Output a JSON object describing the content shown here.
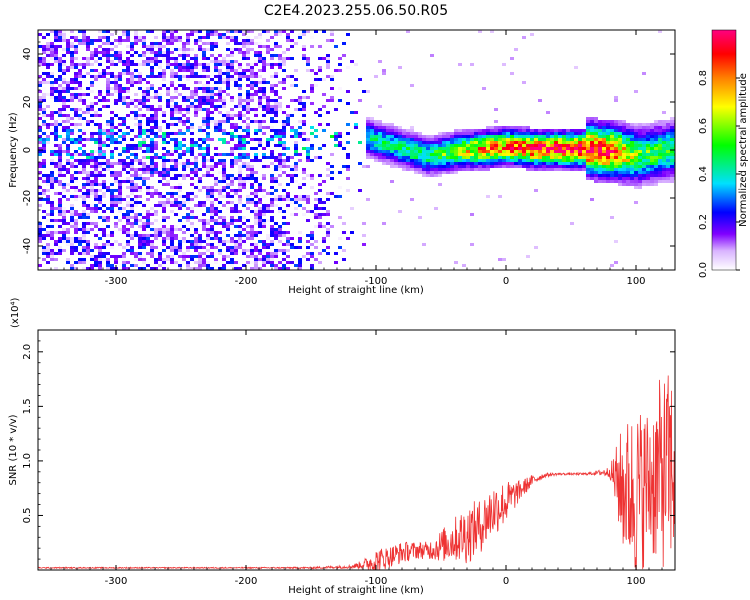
{
  "title": "C2E4.2023.255.06.50.R05",
  "chart_data": [
    {
      "type": "heatmap",
      "xlabel": "Height of straight line (km)",
      "ylabel": "Frequency (Hz)",
      "xlim": [
        -360,
        130
      ],
      "ylim": [
        -50,
        50
      ],
      "xticks": [
        -300,
        -200,
        -100,
        0,
        100
      ],
      "yticks": [
        -40,
        -20,
        0,
        20,
        40
      ],
      "colorbar": {
        "label": "Normalized spectral amplitude",
        "range": [
          0,
          1
        ],
        "ticks": [
          0.0,
          0.2,
          0.4,
          0.6,
          0.8
        ],
        "palette": [
          "#ffffff",
          "#8000ff",
          "#0000ff",
          "#00e0ff",
          "#00ff00",
          "#ffff00",
          "#ff8000",
          "#ff0000",
          "#ff0080"
        ]
      },
      "description_points": {
        "height_km": [
          -360,
          -300,
          -200,
          -170,
          -130,
          -110,
          -80,
          -60,
          -40,
          -20,
          0,
          20,
          40,
          60,
          80,
          100,
          130
        ],
        "center_frequency_hz": [
          3,
          3,
          3,
          4,
          5,
          6,
          1,
          -2,
          0,
          1,
          2,
          1,
          1,
          1,
          0,
          -2,
          1
        ],
        "peak_amplitude": [
          0.25,
          0.25,
          0.28,
          0.3,
          0.35,
          0.4,
          0.45,
          0.5,
          0.6,
          0.75,
          0.8,
          0.9,
          0.95,
          0.95,
          0.9,
          0.55,
          0.5
        ]
      }
    },
    {
      "type": "line",
      "xlabel": "Height of straight line (km)",
      "ylabel": "SNR (10 * v/v)",
      "yscale_label": "(x10⁴)",
      "xlim": [
        -360,
        130
      ],
      "ylim": [
        0,
        2.2
      ],
      "xticks": [
        -300,
        -200,
        -100,
        0,
        100
      ],
      "yticks": [
        0.5,
        1.0,
        1.5,
        2.0
      ],
      "ytick_labels": [
        "0.5",
        "1.0",
        "1.5",
        "2.0"
      ],
      "series": [
        {
          "color": "#ee3333",
          "x": [
            -360,
            -300,
            -250,
            -200,
            -150,
            -120,
            -110,
            -100,
            -90,
            -80,
            -70,
            -60,
            -50,
            -40,
            -30,
            -20,
            -10,
            0,
            10,
            20,
            30,
            40,
            50,
            60,
            70,
            80,
            90,
            100,
            110,
            120,
            130
          ],
          "mean": [
            0.02,
            0.02,
            0.02,
            0.02,
            0.02,
            0.03,
            0.05,
            0.08,
            0.12,
            0.16,
            0.18,
            0.18,
            0.22,
            0.28,
            0.33,
            0.4,
            0.55,
            0.62,
            0.72,
            0.82,
            0.87,
            0.88,
            0.88,
            0.88,
            0.89,
            0.9,
            0.75,
            0.7,
            0.8,
            0.9,
            0.95
          ],
          "spread": [
            0.005,
            0.005,
            0.005,
            0.005,
            0.008,
            0.015,
            0.04,
            0.12,
            0.1,
            0.1,
            0.08,
            0.08,
            0.15,
            0.2,
            0.28,
            0.25,
            0.25,
            0.2,
            0.1,
            0.05,
            0.02,
            0.01,
            0.01,
            0.01,
            0.02,
            0.05,
            0.6,
            0.8,
            0.7,
            0.9,
            0.9
          ]
        }
      ]
    }
  ]
}
